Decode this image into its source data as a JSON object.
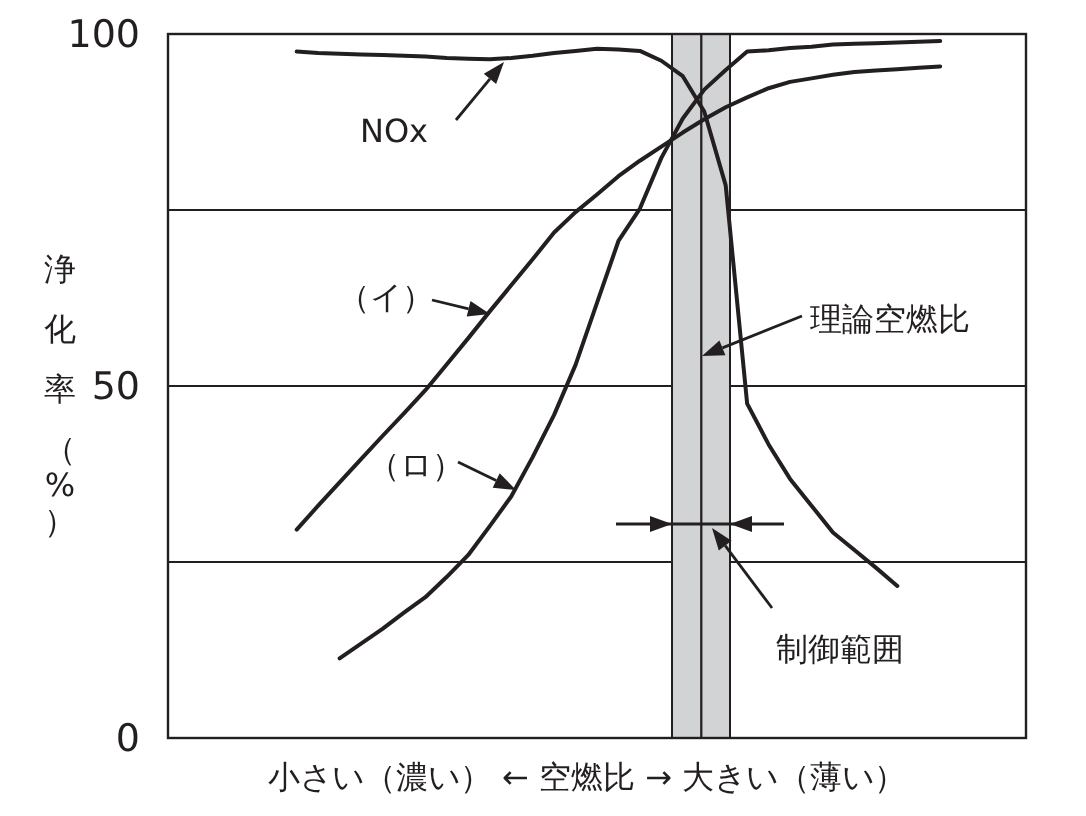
{
  "chart_data": {
    "type": "line",
    "xlabel": "小さい（濃い） ← 空燃比 → 大きい（薄い）",
    "ylabel": "浄化率（%）",
    "categories": [
      null,
      null,
      null,
      null,
      null,
      null,
      null,
      null,
      null,
      null,
      null,
      null,
      null,
      null,
      null,
      null,
      null,
      null,
      null,
      null,
      null,
      null,
      null,
      null,
      null,
      null,
      null,
      null,
      null,
      null,
      null,
      null,
      null,
      null,
      null,
      null,
      null,
      null,
      null,
      null,
      null
    ],
    "ylim": [
      0,
      100
    ],
    "yticks": [
      0,
      {
        "value": 25,
        "label": null
      },
      50,
      {
        "value": 75,
        "label": null
      },
      100
    ],
    "tick_labels": "y",
    "grid": "y",
    "legend": "left",
    "marker": "none",
    "line_style": "solid",
    "series": [
      {
        "name": "NOx",
        "color": "#231f20",
        "values": [
          null,
          null,
          null,
          null,
          null,
          null,
          97.5,
          97.3,
          97.2,
          97.1,
          97,
          96.9,
          96.8,
          96.6,
          96.5,
          96.4,
          96.6,
          96.9,
          97.3,
          97.6,
          97.9,
          97.8,
          97.6,
          96.2,
          94,
          89,
          78.5,
          47.5,
          41.7,
          36.8,
          33,
          29.2,
          26.7,
          24.2,
          21.6,
          null,
          null,
          null,
          null,
          null,
          null
        ]
      },
      {
        "name": "（イ）",
        "color": "#231f20",
        "values": [
          null,
          null,
          null,
          null,
          null,
          null,
          29.6,
          33,
          36.3,
          39.6,
          42.9,
          46.1,
          49.4,
          53.1,
          56.8,
          60.6,
          64.3,
          68,
          71.8,
          74.7,
          77.2,
          79.8,
          82,
          84,
          86,
          87.9,
          89.6,
          91,
          92.3,
          93.2,
          93.7,
          94.2,
          94.6,
          94.8,
          95,
          95.2,
          95.4,
          null,
          null,
          null,
          null
        ]
      },
      {
        "name": "（ロ）",
        "color": "#231f20",
        "values": [
          null,
          null,
          null,
          null,
          null,
          null,
          null,
          null,
          11.3,
          13.4,
          15.5,
          17.8,
          20,
          22.9,
          26,
          30.1,
          34.3,
          39.9,
          45.9,
          53,
          61.8,
          70.6,
          75.2,
          82.4,
          88,
          92.1,
          94.9,
          97.5,
          97.7,
          98,
          98.2,
          98.5,
          98.6,
          98.7,
          98.8,
          98.9,
          99,
          null,
          null,
          null,
          null
        ]
      }
    ],
    "annotations": [
      "理論空燃比",
      "制御範囲"
    ]
  }
}
